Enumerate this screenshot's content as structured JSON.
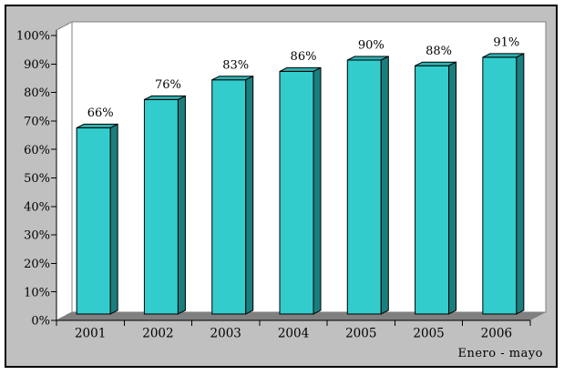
{
  "chart_data": {
    "type": "bar",
    "style": "3d-column",
    "title": "",
    "categories": [
      "2001",
      "2002",
      "2003",
      "2004",
      "2005",
      "2005",
      "2006"
    ],
    "values": [
      66,
      76,
      83,
      86,
      90,
      88,
      91
    ],
    "data_labels": [
      "66%",
      "76%",
      "83%",
      "86%",
      "90%",
      "88%",
      "91%"
    ],
    "y_ticks": [
      "0%",
      "10%",
      "20%",
      "30%",
      "40%",
      "50%",
      "60%",
      "70%",
      "80%",
      "90%",
      "100%"
    ],
    "ylim": [
      0,
      100
    ],
    "xlabel": "",
    "ylabel": "",
    "note": "Enero - mayo",
    "legend": "none",
    "gridlines": false,
    "colors": {
      "bar_front": "#33CCCC",
      "bar_top": "#2DB1B1",
      "bar_side": "#1A7E7E",
      "outline": "#000000",
      "background": "#C0C0C0",
      "wall": "#FFFFFF",
      "wall_border": "#808080",
      "floor": "#808080",
      "axis": "#000000",
      "text": "#000000"
    }
  }
}
